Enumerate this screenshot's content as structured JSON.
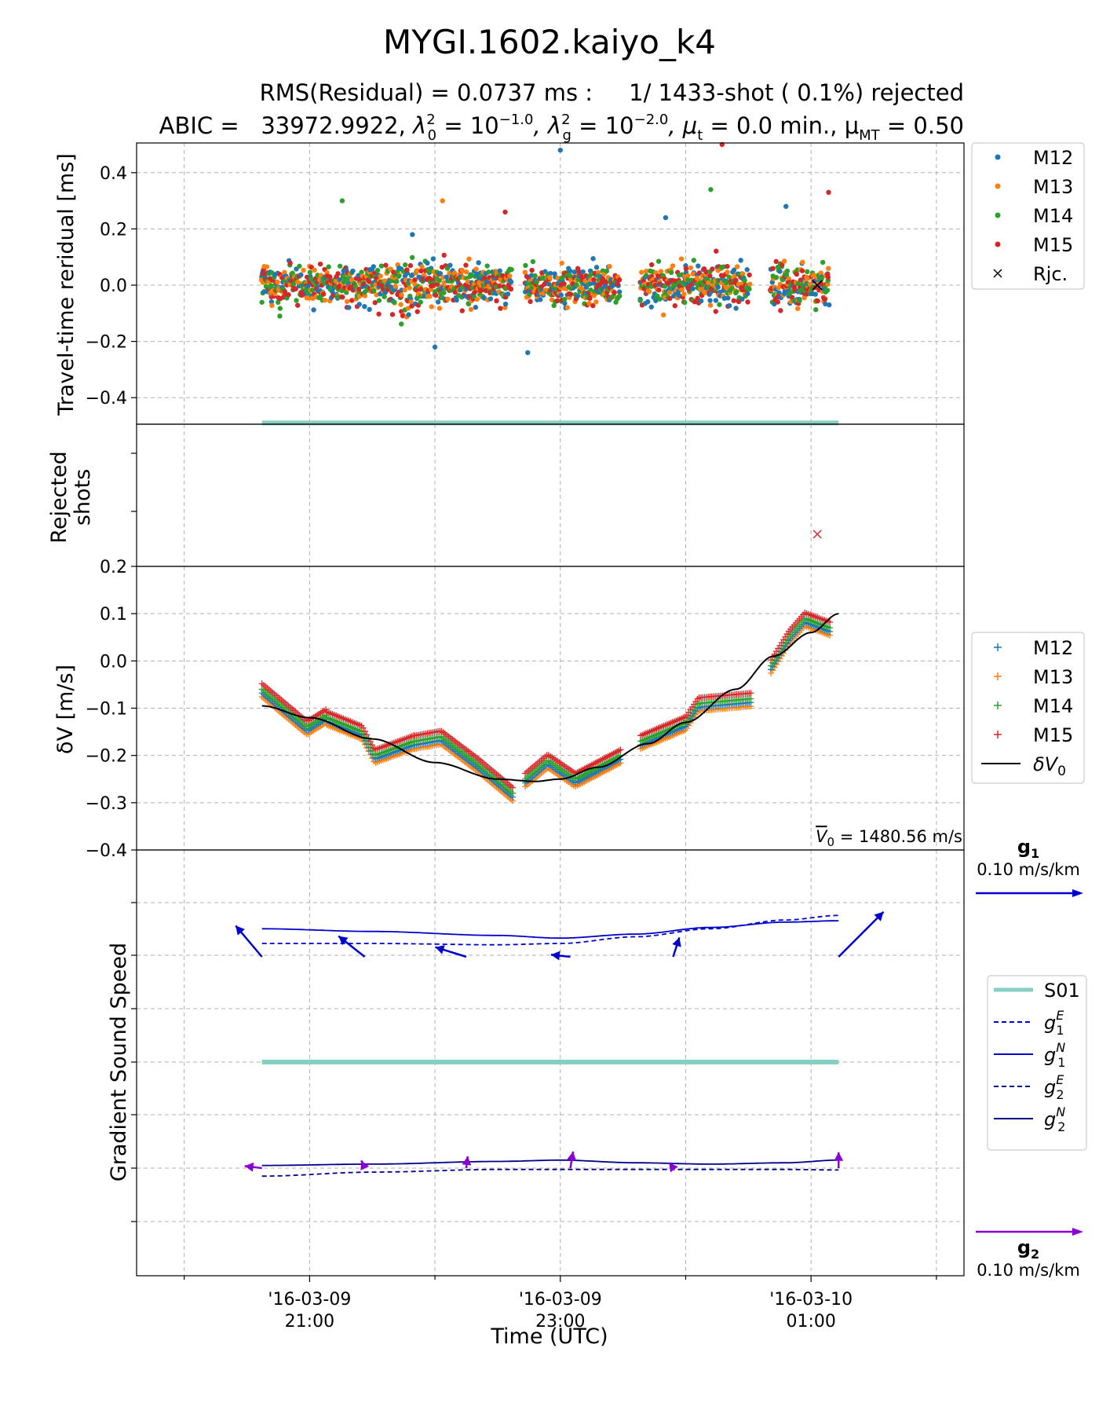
{
  "figure": {
    "title": "MYGI.1602.kaiyo_k4",
    "rms_line": {
      "text": "RMS(Residual) = 0.0737 ms :     1/ 1433-shot ( 0.1%) rejected"
    },
    "abic_line": {
      "abic": "ABIC =   33972.9922, ",
      "l0_sym": "λ",
      "l0_sub": "0",
      "l0_sup": "2",
      "l0_val": " = 10",
      "l0_exp": "−1.0",
      "lg_sym": ", λ",
      "lg_sub": "g",
      "lg_sup": "2",
      "lg_val": " = 10",
      "lg_exp": "−2.0",
      "mut_sym": ", μ",
      "mut_sub": "t",
      "mut_val": " = 0.0 min., μ",
      "mumt_sub": "MT",
      "mumt_val": " = 0.50"
    },
    "xlabel": "Time (UTC)",
    "x_ticks": [
      {
        "line1": "'16-03-09",
        "line2": "21:00",
        "t": 1.0
      },
      {
        "line1": "'16-03-09",
        "line2": "23:00",
        "t": 3.0
      },
      {
        "line1": "'16-03-10",
        "line2": "01:00",
        "t": 5.0
      }
    ],
    "x_minor_ticks": [
      0.0,
      2.0,
      4.0,
      6.0
    ]
  },
  "chart_data": [
    {
      "type": "scatter",
      "panel": "residual",
      "ylabel": "Travel-time reridual [ms]",
      "ylim": [
        -0.5,
        0.5
      ],
      "xlim": [
        -0.38,
        6.22
      ],
      "y_ticks": [
        "0.4",
        "0.2",
        "0.0",
        "−0.2",
        "−0.4"
      ],
      "y_tick_values": [
        0.4,
        0.2,
        0.0,
        -0.2,
        -0.4
      ],
      "grid": true,
      "legend_position": "outside-right",
      "series": [
        {
          "name": "M12",
          "color": "#1f77b4",
          "marker": "dot"
        },
        {
          "name": "M13",
          "color": "#ff7f0e",
          "marker": "dot"
        },
        {
          "name": "M14",
          "color": "#2ca02c",
          "marker": "dot"
        },
        {
          "name": "M15",
          "color": "#d62728",
          "marker": "dot"
        },
        {
          "name": "Rjc.",
          "color": "#000000",
          "marker": "x",
          "x": [
            5.05
          ],
          "y": [
            0.0
          ]
        }
      ],
      "shot_segments_hours": [
        [
          0.62,
          1.13
        ],
        [
          1.14,
          1.83
        ],
        [
          1.84,
          2.62
        ],
        [
          2.72,
          3.48
        ],
        [
          3.64,
          4.52
        ],
        [
          4.68,
          5.15
        ]
      ],
      "outliers": [
        {
          "x": 3.0,
          "y": 0.48,
          "series": "M12"
        },
        {
          "x": 1.26,
          "y": 0.3,
          "series": "M14"
        },
        {
          "x": 2.56,
          "y": 0.26,
          "series": "M15"
        },
        {
          "x": 4.2,
          "y": 0.34,
          "series": "M14"
        },
        {
          "x": 4.8,
          "y": 0.28,
          "series": "M12"
        },
        {
          "x": 5.14,
          "y": 0.33,
          "series": "M15"
        },
        {
          "x": 4.29,
          "y": 0.5,
          "series": "M15"
        },
        {
          "x": 3.84,
          "y": 0.24,
          "series": "M12"
        },
        {
          "x": 2.74,
          "y": -0.24,
          "series": "M12"
        },
        {
          "x": 2.0,
          "y": -0.22,
          "series": "M12"
        },
        {
          "x": 1.82,
          "y": 0.18,
          "series": "M12"
        },
        {
          "x": 2.06,
          "y": 0.3,
          "series": "M13"
        }
      ],
      "site_bar": {
        "name": "S01",
        "x0": 0.62,
        "x1": 5.22,
        "y": -0.49,
        "color": "#88cfc3"
      }
    },
    {
      "type": "scatter",
      "panel": "rejected",
      "ylabel": "Rejected shots",
      "points": [
        {
          "x": 5.05,
          "series": "M15",
          "marker": "x",
          "color": "#d62728"
        }
      ]
    },
    {
      "type": "line",
      "panel": "dV",
      "ylabel": "δV [m/s]",
      "ylim": [
        -0.4,
        0.2
      ],
      "y_ticks": [
        "0.2",
        "0.1",
        "0.0",
        "−0.1",
        "−0.2",
        "−0.3",
        "−0.4"
      ],
      "y_tick_values": [
        0.2,
        0.1,
        0.0,
        -0.1,
        -0.2,
        -0.3,
        -0.4
      ],
      "annotation": "= 1480.56 m/s",
      "annotation_symbol": "V",
      "annotation_sub": "0",
      "legend_position": "right",
      "series": [
        {
          "name": "M12",
          "color": "#1f77b4",
          "marker": "plus",
          "offset": -0.008
        },
        {
          "name": "M13",
          "color": "#ff7f0e",
          "marker": "plus",
          "offset": -0.016
        },
        {
          "name": "M14",
          "color": "#2ca02c",
          "marker": "plus",
          "offset": 0.0
        },
        {
          "name": "M15",
          "color": "#d62728",
          "marker": "plus",
          "offset": 0.012
        }
      ],
      "shot_curve_segments": [
        {
          "x": [
            0.62,
            0.98,
            1.13
          ],
          "y": [
            -0.06,
            -0.14,
            -0.115
          ]
        },
        {
          "x": [
            1.14,
            1.42,
            1.52,
            1.83
          ],
          "y": [
            -0.12,
            -0.15,
            -0.2,
            -0.17
          ]
        },
        {
          "x": [
            1.84,
            2.05,
            2.35,
            2.62
          ],
          "y": [
            -0.17,
            -0.16,
            -0.22,
            -0.28
          ]
        },
        {
          "x": [
            2.72,
            2.9,
            3.12,
            3.48
          ],
          "y": [
            -0.25,
            -0.21,
            -0.25,
            -0.2
          ]
        },
        {
          "x": [
            3.64,
            4.0,
            4.1,
            4.52
          ],
          "y": [
            -0.17,
            -0.13,
            -0.09,
            -0.08
          ]
        },
        {
          "x": [
            4.68,
            4.82,
            4.95,
            5.15
          ],
          "y": [
            -0.01,
            0.05,
            0.09,
            0.07
          ]
        }
      ],
      "ref_line": {
        "name": "δV",
        "name_sub": "0",
        "color": "#000000",
        "x": [
          0.62,
          1.0,
          1.5,
          2.0,
          2.5,
          2.8,
          3.0,
          3.3,
          3.7,
          4.0,
          4.4,
          4.7,
          5.0,
          5.22
        ],
        "y": [
          -0.095,
          -0.12,
          -0.165,
          -0.215,
          -0.25,
          -0.255,
          -0.25,
          -0.225,
          -0.175,
          -0.13,
          -0.06,
          0.01,
          0.06,
          0.1
        ]
      }
    },
    {
      "type": "line",
      "panel": "gradient",
      "ylabel": "Gradient Sound Speed",
      "g1": {
        "label": "g",
        "label_sub": "1",
        "scale_text": "0.10 m/s/km",
        "color": "#0000cc",
        "east": {
          "x": [
            0.62,
            1.5,
            2.5,
            3.0,
            3.6,
            4.2,
            4.8,
            5.22
          ],
          "y": [
            0.5,
            0.5,
            0.45,
            0.5,
            0.75,
            1.05,
            1.38,
            1.55
          ]
        },
        "north": {
          "x": [
            0.62,
            1.5,
            2.5,
            3.0,
            3.6,
            4.2,
            4.8,
            5.22
          ],
          "y": [
            1.05,
            0.95,
            0.8,
            0.7,
            0.85,
            1.1,
            1.3,
            1.35
          ]
        },
        "arrows": [
          {
            "x": 0.62,
            "dE": -0.38,
            "dN": 0.45
          },
          {
            "x": 1.44,
            "dE": -0.38,
            "dN": 0.3
          },
          {
            "x": 2.25,
            "dE": -0.45,
            "dN": 0.14
          },
          {
            "x": 3.08,
            "dE": -0.28,
            "dN": 0.03
          },
          {
            "x": 3.9,
            "dE": 0.09,
            "dN": 0.28
          },
          {
            "x": 5.22,
            "dE": 0.65,
            "dN": 0.65
          }
        ]
      },
      "g2": {
        "label": "g",
        "label_sub": "2",
        "scale_text": "0.10 m/s/km",
        "color": "#8a00d4",
        "east": {
          "x": [
            0.62,
            1.5,
            2.5,
            3.0,
            3.6,
            4.2,
            4.8,
            5.22
          ],
          "y": [
            -0.3,
            -0.15,
            -0.05,
            -0.05,
            -0.05,
            -0.05,
            -0.05,
            -0.07
          ]
        },
        "north": {
          "x": [
            0.62,
            1.5,
            2.5,
            3.0,
            3.6,
            4.2,
            4.8,
            5.22
          ],
          "y": [
            0.1,
            0.15,
            0.25,
            0.3,
            0.2,
            0.15,
            0.2,
            0.3
          ]
        },
        "arrows": [
          {
            "x": 0.62,
            "dE": -0.25,
            "dN": 0.03
          },
          {
            "x": 1.44,
            "dE": -0.05,
            "dN": 0.11
          },
          {
            "x": 2.25,
            "dE": 0.02,
            "dN": 0.17
          },
          {
            "x": 3.08,
            "dE": 0.04,
            "dN": 0.24
          },
          {
            "x": 3.9,
            "dE": -0.06,
            "dN": 0.08
          },
          {
            "x": 5.22,
            "dE": 0.0,
            "dN": 0.23
          }
        ]
      },
      "site_line": {
        "name": "S01",
        "color": "#88cfc3"
      },
      "legend": [
        {
          "name": "S01",
          "style": "thick",
          "color": "#88cfc3"
        },
        {
          "name": "g",
          "sub": "1",
          "sup": "E",
          "style": "dashed",
          "color": "#0000cc"
        },
        {
          "name": "g",
          "sub": "1",
          "sup": "N",
          "style": "solid",
          "color": "#0000cc"
        },
        {
          "name": "g",
          "sub": "2",
          "sup": "E",
          "style": "dashed",
          "color": "#00008b"
        },
        {
          "name": "g",
          "sub": "2",
          "sup": "N",
          "style": "solid",
          "color": "#00008b"
        }
      ]
    }
  ]
}
